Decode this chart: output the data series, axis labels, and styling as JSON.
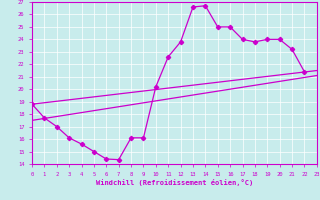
{
  "xlabel": "Windchill (Refroidissement éolien,°C)",
  "xlim": [
    0,
    23
  ],
  "ylim": [
    14,
    27
  ],
  "bg_color": "#c8ecec",
  "line_color": "#cc00cc",
  "grid_color": "#ffffff",
  "curve_x": [
    0,
    1,
    2,
    3,
    4,
    5,
    6,
    7,
    8,
    9,
    10,
    11,
    12,
    13,
    14,
    15,
    16,
    17,
    18,
    19,
    20,
    21,
    22
  ],
  "curve_y": [
    18.8,
    17.7,
    17.0,
    16.1,
    15.6,
    15.0,
    14.4,
    14.35,
    16.1,
    16.1,
    20.2,
    22.6,
    23.8,
    26.6,
    26.7,
    25.0,
    25.0,
    24.0,
    23.8,
    24.0,
    24.0,
    23.2,
    21.4
  ],
  "line1_x": [
    0,
    23
  ],
  "line1_y": [
    18.8,
    21.5
  ],
  "line2_x": [
    0,
    23
  ],
  "line2_y": [
    17.5,
    21.1
  ],
  "lw": 0.9,
  "marker_size": 2.2,
  "tick_fontsize": 4.0,
  "xlabel_fontsize": 5.0
}
